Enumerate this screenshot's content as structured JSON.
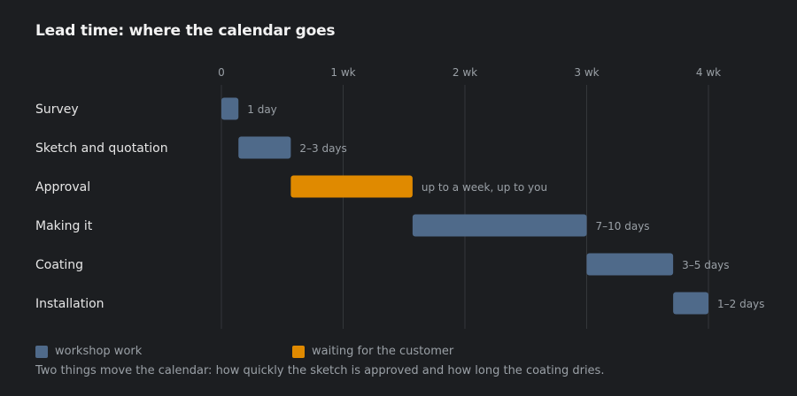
{
  "chart_data": {
    "type": "gantt",
    "title": "Lead time: where the calendar goes",
    "x_unit": "weeks",
    "xlim": [
      0,
      4.35
    ],
    "ticks": [
      {
        "value": 0,
        "label": "0"
      },
      {
        "value": 1,
        "label": "1 wk"
      },
      {
        "value": 2,
        "label": "2 wk"
      },
      {
        "value": 3,
        "label": "3 wk"
      },
      {
        "value": 4,
        "label": "4 wk"
      }
    ],
    "grid": true,
    "tasks": [
      {
        "name": "Survey",
        "start": 0,
        "end": 0.14,
        "label": "1 day",
        "kind": "workshop"
      },
      {
        "name": "Sketch and quotation",
        "start": 0.14,
        "end": 0.57,
        "label": "2–3 days",
        "kind": "workshop"
      },
      {
        "name": "Approval",
        "start": 0.57,
        "end": 1.57,
        "label": "up to a week, up to you",
        "kind": "waiting"
      },
      {
        "name": "Making it",
        "start": 1.57,
        "end": 3.0,
        "label": "7–10 days",
        "kind": "workshop"
      },
      {
        "name": "Coating",
        "start": 3.0,
        "end": 3.71,
        "label": "3–5 days",
        "kind": "workshop"
      },
      {
        "name": "Installation",
        "start": 3.71,
        "end": 4.0,
        "label": "1–2 days",
        "kind": "workshop"
      }
    ],
    "legend": [
      {
        "kind": "workshop",
        "label": "workshop work",
        "color": "#4f6a8a"
      },
      {
        "kind": "waiting",
        "label": "waiting for the customer",
        "color": "#e08a00"
      }
    ],
    "legend_position": "bottom-left",
    "footnote": "Two things move the calendar: how quickly the sketch is approved and how long the coating dries."
  },
  "colors": {
    "background": "#1c1e21",
    "workshop": "#4f6a8a",
    "waiting": "#e08a00",
    "grid": "#34373b",
    "title": "#f2f2f2",
    "task_label": "#e6e6e6",
    "muted": "#9aa0a6"
  }
}
